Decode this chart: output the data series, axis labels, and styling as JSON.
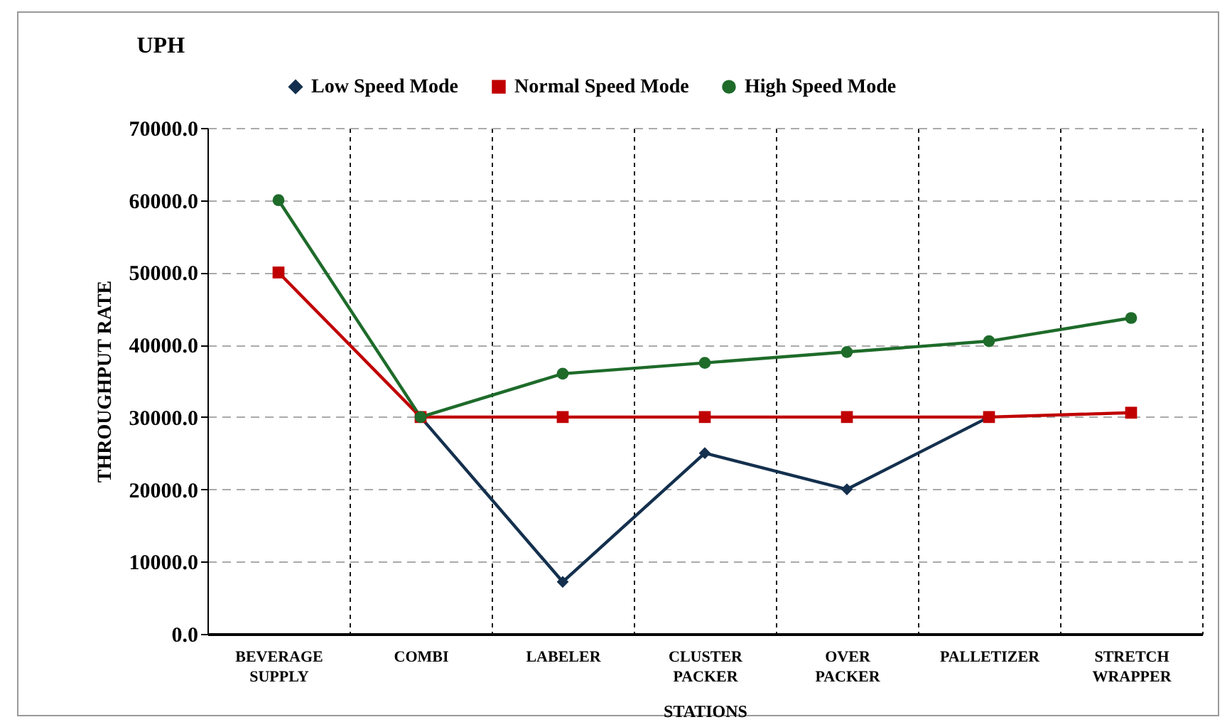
{
  "chart_data": {
    "type": "line",
    "title": "UPH",
    "xlabel": "STATIONS",
    "ylabel": "THROUGHPUT RATE",
    "categories": [
      "BEVERAGE SUPPLY",
      "COMBI",
      "LABELER",
      "CLUSTER PACKER",
      "OVER PACKER",
      "PALLETIZER",
      "STRETCH WRAPPER"
    ],
    "series": [
      {
        "name": "Low Speed Mode",
        "color": "#14304e",
        "marker": "diamond",
        "values": [
          null,
          30000,
          7200,
          25000,
          20000,
          30000,
          null
        ]
      },
      {
        "name": "Normal Speed Mode",
        "color": "#c00000",
        "marker": "square",
        "values": [
          50000,
          30000,
          30000,
          30000,
          30000,
          30000,
          30600
        ]
      },
      {
        "name": "High Speed Mode",
        "color": "#1e6b2a",
        "marker": "circle",
        "values": [
          60000,
          30000,
          36000,
          37500,
          39000,
          40500,
          43700
        ]
      }
    ],
    "ylim": [
      0,
      70000
    ],
    "yticks": [
      {
        "value": 0,
        "label": "0.0"
      },
      {
        "value": 10000,
        "label": "10000.0"
      },
      {
        "value": 20000,
        "label": "20000.0"
      },
      {
        "value": 30000,
        "label": "30000.0"
      },
      {
        "value": 40000,
        "label": "40000.0"
      },
      {
        "value": 50000,
        "label": "50000.0"
      },
      {
        "value": 60000,
        "label": "60000.0"
      },
      {
        "value": 70000,
        "label": "70000.0"
      }
    ],
    "grid": true,
    "legend": "top",
    "line_style": "solid"
  }
}
